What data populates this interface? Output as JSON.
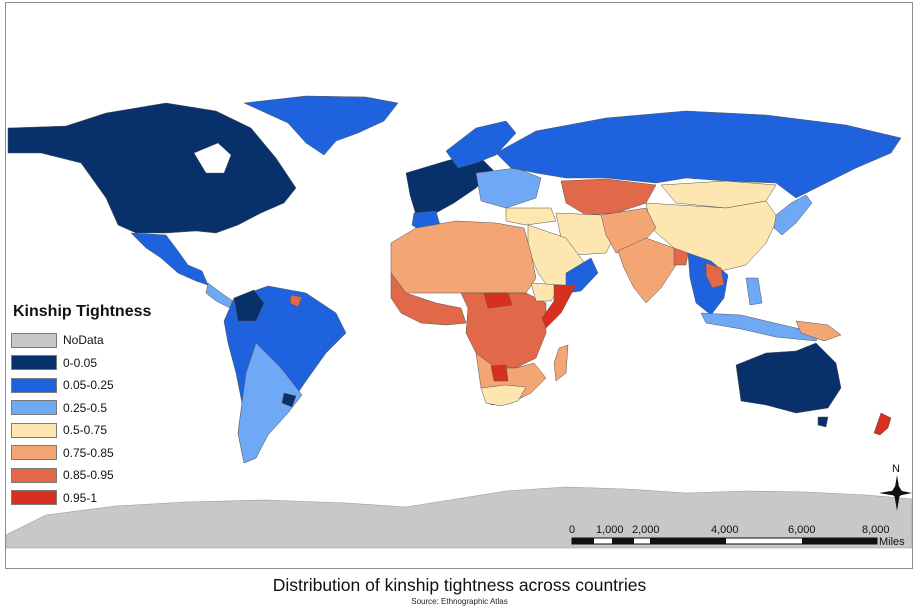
{
  "legend": {
    "title": "Kinship Tightness",
    "items": [
      {
        "label": "NoData",
        "color": "#c8c8c8"
      },
      {
        "label": "0-0.05",
        "color": "#08306b"
      },
      {
        "label": "0.05-0.25",
        "color": "#1f62dd"
      },
      {
        "label": "0.25-0.5",
        "color": "#6fa8f5"
      },
      {
        "label": "0.5-0.75",
        "color": "#fde6b0"
      },
      {
        "label": "0.75-0.85",
        "color": "#f4a574"
      },
      {
        "label": "0.85-0.95",
        "color": "#e2684a"
      },
      {
        "label": "0.95-1",
        "color": "#d7301f"
      }
    ]
  },
  "scale_bar": {
    "ticks": [
      "0",
      "1,000",
      "2,000",
      "4,000",
      "6,000",
      "8,000"
    ],
    "unit": "Miles"
  },
  "north_arrow": {
    "label": "N"
  },
  "caption": "Distribution of kinship tightness across countries",
  "source": "Source: Ethnographic Atlas"
}
